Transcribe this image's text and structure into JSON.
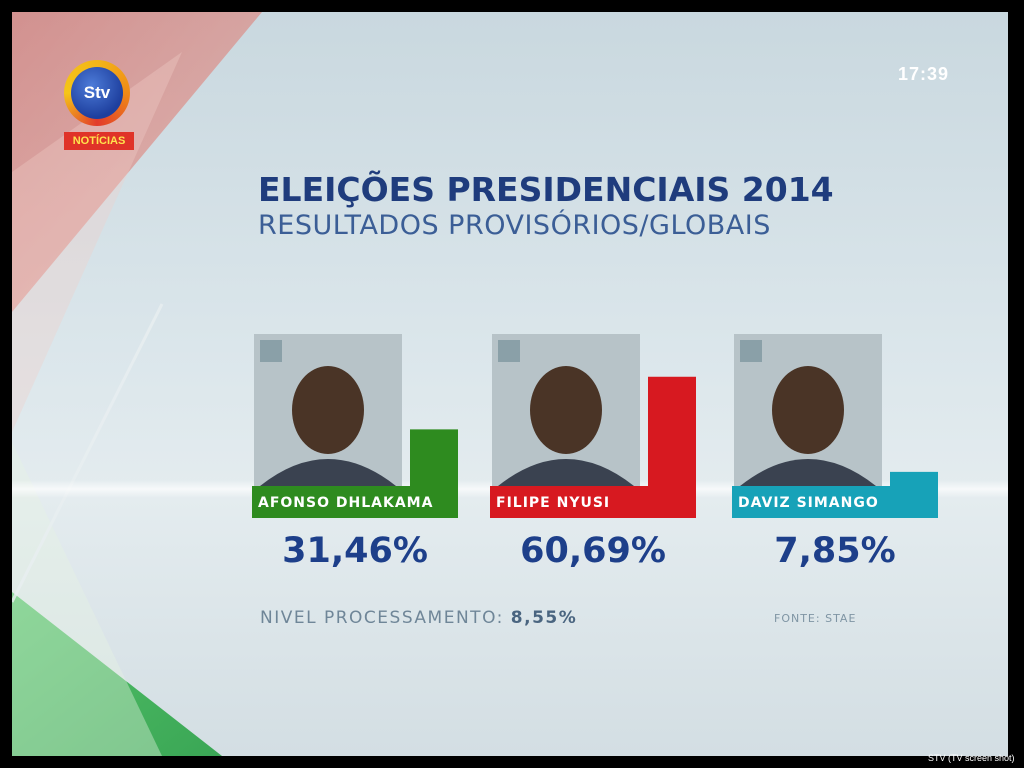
{
  "header": {
    "logo_text": "Stv",
    "logo_tag": "NOTÍCIAS",
    "clock": "17:39"
  },
  "chart_data": {
    "type": "bar",
    "title": "ELEIÇÕES PRESIDENCIAIS 2014",
    "subtitle": "RESULTADOS PROVISÓRIOS/GLOBAIS",
    "categories": [
      "AFONSO DHLAKAMA",
      "FILIPE NYUSI",
      "DAVIZ SIMANGO"
    ],
    "values": [
      31.46,
      60.69,
      7.85
    ],
    "value_labels": [
      "31,46%",
      "60,69%",
      "7,85%"
    ],
    "colors": [
      "#2e8b1f",
      "#d71920",
      "#17a2b8"
    ],
    "ylim": [
      0,
      100
    ]
  },
  "footer": {
    "processing_label": "NIVEL PROCESSAMENTO:",
    "processing_value": "8,55%",
    "source": "FONTE: STAE"
  },
  "credit": "STV (TV screen shot)"
}
